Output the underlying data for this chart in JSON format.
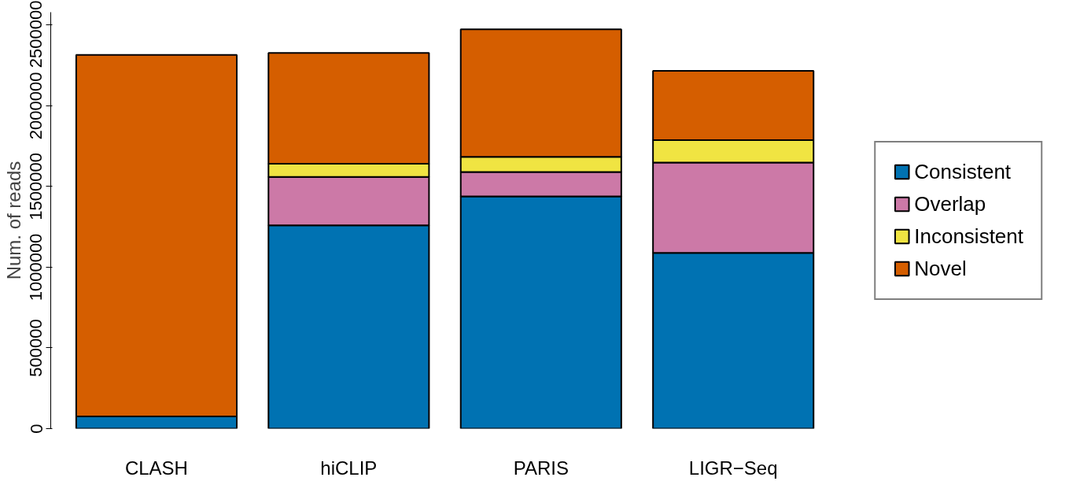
{
  "chart_data": {
    "type": "bar",
    "stacked": true,
    "ylabel": "Num. of reads",
    "categories": [
      "CLASH",
      "hiCLIP",
      "PARIS",
      "LIGR−Seq"
    ],
    "series": [
      {
        "name": "Consistent",
        "color": "#0072b2",
        "values": [
          75000,
          1260000,
          1439000,
          1089000
        ]
      },
      {
        "name": "Overlap",
        "color": "#cc79a7",
        "values": [
          0,
          300000,
          151000,
          560000
        ]
      },
      {
        "name": "Inconsistent",
        "color": "#f0e442",
        "values": [
          0,
          81000,
          94000,
          139000
        ]
      },
      {
        "name": "Novel",
        "color": "#d55e00",
        "values": [
          2240000,
          686000,
          790000,
          429000
        ]
      }
    ],
    "ylim": [
      0,
      2580000
    ],
    "yticks": [
      0,
      500000,
      1000000,
      1500000,
      2000000,
      2500000
    ],
    "grid": false,
    "legend": "right"
  }
}
